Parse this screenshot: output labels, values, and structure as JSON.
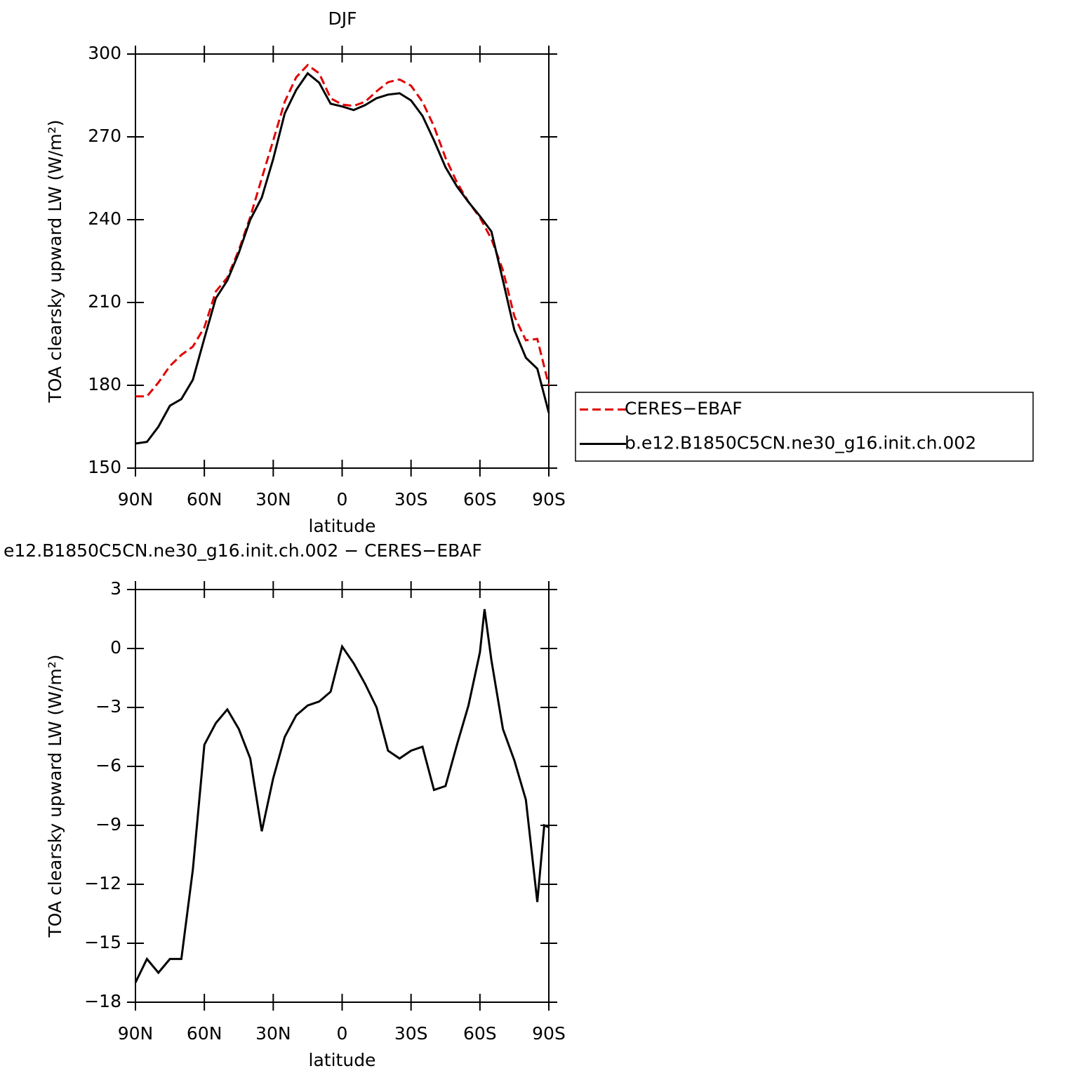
{
  "chart_data": [
    {
      "type": "line",
      "title": "DJF",
      "xlabel": "latitude",
      "ylabel": "TOA clearsky upward LW (W/m²)",
      "x": [
        90,
        85,
        80,
        75,
        70,
        65,
        60,
        55,
        50,
        45,
        40,
        35,
        30,
        25,
        20,
        15,
        10,
        5,
        0,
        -5,
        -10,
        -15,
        -20,
        -25,
        -30,
        -35,
        -40,
        -45,
        -50,
        -55,
        -60,
        -65,
        -70,
        -75,
        -80,
        -85,
        -90
      ],
      "xlim": [
        90,
        -90
      ],
      "xticks": [
        {
          "value": 90,
          "label": "90N"
        },
        {
          "value": 60,
          "label": "60N"
        },
        {
          "value": 30,
          "label": "30N"
        },
        0,
        {
          "value": -30,
          "label": "30S"
        },
        {
          "value": -60,
          "label": "60S"
        },
        {
          "value": -90,
          "label": "90S"
        }
      ],
      "ylim": [
        150,
        300
      ],
      "yticks": [
        150,
        180,
        210,
        240,
        270,
        300
      ],
      "legend": "right",
      "series": [
        {
          "name": "CERES−EBAF",
          "color": "#e00000",
          "line_style": "dashed",
          "values": [
            176,
            176,
            181,
            187,
            191,
            194,
            201,
            214,
            219,
            229,
            241,
            255,
            268.7,
            282.7,
            291.6,
            296,
            293,
            284,
            281.7,
            281.2,
            282.7,
            286.5,
            289.8,
            290.8,
            288.5,
            282.7,
            273.8,
            262.4,
            253.5,
            246.4,
            240.8,
            233,
            221.7,
            205,
            196.3,
            196.8,
            180
          ]
        },
        {
          "name": "b.e12.B1850C5CN.ne30_g16.init.ch.002",
          "color": "#000000",
          "line_style": "solid",
          "values": [
            158.9,
            159.5,
            165,
            172.6,
            175,
            182,
            197,
            211.5,
            218,
            228,
            240,
            248,
            262,
            278.5,
            287,
            293,
            289.6,
            282,
            281,
            279.7,
            281.5,
            284,
            285.3,
            285.8,
            283.2,
            277.6,
            268.7,
            259,
            252,
            246.4,
            241.3,
            235.7,
            218,
            200,
            190,
            186,
            170
          ]
        }
      ]
    },
    {
      "type": "line",
      "title": "e12.B1850C5CN.ne30_g16.init.ch.002 − CERES−EBAF",
      "xlabel": "latitude",
      "ylabel": "TOA clearsky upward LW (W/m²)",
      "x": [
        90,
        85,
        80,
        75,
        70,
        65,
        60,
        55,
        50,
        45,
        40,
        35,
        30,
        25,
        20,
        15,
        10,
        5,
        0,
        -5,
        -10,
        -15,
        -20,
        -25,
        -30,
        -35,
        -40,
        -45,
        -50,
        -55,
        -60,
        -62,
        -65,
        -70,
        -75,
        -80,
        -85,
        -88,
        -90
      ],
      "xlim": [
        90,
        -90
      ],
      "xticks": [
        {
          "value": 90,
          "label": "90N"
        },
        {
          "value": 60,
          "label": "60N"
        },
        {
          "value": 30,
          "label": "30N"
        },
        0,
        {
          "value": -30,
          "label": "30S"
        },
        {
          "value": -60,
          "label": "60S"
        },
        {
          "value": -90,
          "label": "90S"
        }
      ],
      "ylim": [
        -18,
        3
      ],
      "yticks": [
        {
          "value": -18,
          "label": "−18"
        },
        {
          "value": -15,
          "label": "−15"
        },
        {
          "value": -12,
          "label": "−12"
        },
        {
          "value": -9,
          "label": "−9"
        },
        {
          "value": -6,
          "label": "−6"
        },
        {
          "value": -3,
          "label": "−3"
        },
        0,
        3
      ],
      "series": [
        {
          "color": "#000000",
          "line_style": "solid",
          "values": [
            -17,
            -15.8,
            -16.5,
            -15.8,
            -15.8,
            -11.25,
            -4.9,
            -3.8,
            -3.1,
            -4.1,
            -5.6,
            -9.3,
            -6.6,
            -4.5,
            -3.4,
            -2.9,
            -2.7,
            -2.2,
            0.1,
            -0.75,
            -1.8,
            -3,
            -5.2,
            -5.6,
            -5.2,
            -5,
            -7.2,
            -7,
            -4.9,
            -2.9,
            -0.2,
            2,
            -0.6,
            -4.1,
            -5.7,
            -7.7,
            -12.9,
            -9,
            -9.1
          ]
        }
      ]
    }
  ]
}
